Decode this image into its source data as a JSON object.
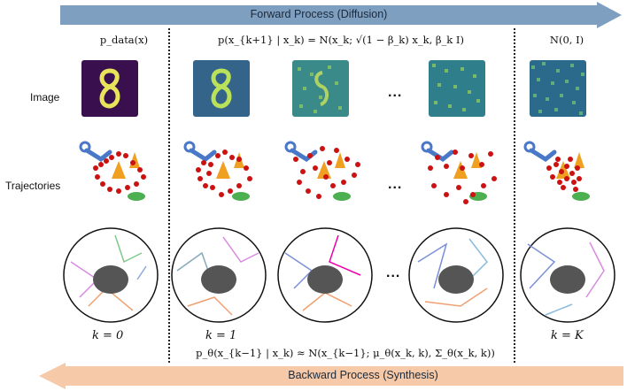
{
  "arrows": {
    "forward_label": "Forward Process (Diffusion)",
    "backward_label": "Backward Process (Synthesis)",
    "forward_color": "#7f9fc1",
    "backward_color": "#f6c9a8"
  },
  "row_labels": {
    "image": "Image",
    "trajectories": "Trajectories"
  },
  "equations": {
    "data_dist": "p_data(x)",
    "forward_kernel": "p(x_{k+1} | x_k) = N(x_k; √(1 − β_k) x_k, β_k I)",
    "prior": "N(0, I)",
    "reverse_kernel": "p_θ(x_{k−1} | x_k) ≈ N(x_{k−1}; μ_θ(x_k, k), Σ_θ(x_k, k))"
  },
  "step_labels": {
    "k0": "k = 0",
    "k1": "k = 1",
    "kK": "k = K"
  },
  "ellipsis": "...",
  "colors": {
    "trajectory_dots": "#cc1111",
    "cone": "#f0a020",
    "coins": "#4caf50",
    "robot": "#4a78c8",
    "teapot": "#555555"
  },
  "icons": [
    "robot-arm-icon",
    "traffic-cone-icon",
    "coin-stack-icon",
    "teapot-icon"
  ]
}
